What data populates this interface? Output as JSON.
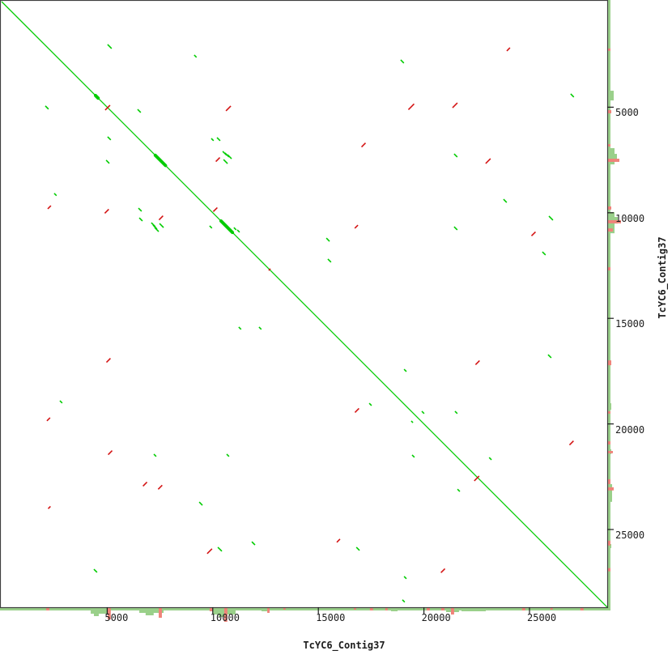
{
  "axes": {
    "x_title": "TcYC6_Contig37",
    "y_title": "TcYC6_Contig37",
    "x_ticks": [
      5000,
      10000,
      15000,
      20000,
      25000
    ],
    "y_ticks": [
      5000,
      10000,
      15000,
      20000,
      25000
    ]
  },
  "colors": {
    "forward_match": "#00cc00",
    "reverse_match": "#d41414",
    "hist_green": "#9ad08a",
    "hist_red": "#f0837a",
    "frame": "#3f3f3f",
    "text": "#1c1c1c",
    "background": "#ffffff"
  },
  "chart_data": {
    "type": "scatter",
    "subtype": "dotplot-self-alignment",
    "title": "",
    "xlabel": "TcYC6_Contig37",
    "ylabel": "TcYC6_Contig37",
    "x_range": [
      0,
      28680
    ],
    "y_range": [
      0,
      28680
    ],
    "sequence_length_bp": 28680,
    "main_diagonal": {
      "from_bp": 0,
      "to_bp": 28680
    },
    "bold_diagonal_regions_bp": [
      [
        4450,
        4570
      ],
      [
        7280,
        7760
      ],
      [
        10390,
        10930
      ]
    ],
    "forward_matches": [
      {
        "x": 5020,
        "y": 2030,
        "len": 190
      },
      {
        "x": 9120,
        "y": 2530,
        "len": 110
      },
      {
        "x": 18900,
        "y": 2760,
        "len": 150
      },
      {
        "x": 24000,
        "y": 2260,
        "len": 0
      },
      {
        "x": 2070,
        "y": 4940,
        "len": 150
      },
      {
        "x": 26950,
        "y": 4370,
        "len": 150
      },
      {
        "x": 6440,
        "y": 5100,
        "len": 150
      },
      {
        "x": 5020,
        "y": 6400,
        "len": 150
      },
      {
        "x": 9930,
        "y": 6480,
        "len": 110
      },
      {
        "x": 10200,
        "y": 6440,
        "len": 150
      },
      {
        "x": 21430,
        "y": 7210,
        "len": 150
      },
      {
        "x": 4950,
        "y": 7510,
        "len": 150
      },
      {
        "x": 10470,
        "y": 7090,
        "len": 190
      },
      {
        "x": 10580,
        "y": 7170,
        "len": 190
      },
      {
        "x": 10700,
        "y": 7250,
        "len": 190
      },
      {
        "x": 10510,
        "y": 7480,
        "len": 190
      },
      {
        "x": 2490,
        "y": 9080,
        "len": 110
      },
      {
        "x": 23770,
        "y": 9360,
        "len": 150
      },
      {
        "x": 6480,
        "y": 9780,
        "len": 150
      },
      {
        "x": 6520,
        "y": 10240,
        "len": 150
      },
      {
        "x": 7090,
        "y": 10470,
        "len": 190
      },
      {
        "x": 7170,
        "y": 10580,
        "len": 190
      },
      {
        "x": 7250,
        "y": 10700,
        "len": 190
      },
      {
        "x": 7480,
        "y": 10510,
        "len": 190
      },
      {
        "x": 9850,
        "y": 10620,
        "len": 110
      },
      {
        "x": 11000,
        "y": 10700,
        "len": 110
      },
      {
        "x": 11160,
        "y": 10810,
        "len": 110
      },
      {
        "x": 25920,
        "y": 10160,
        "len": 190
      },
      {
        "x": 21430,
        "y": 10660,
        "len": 150
      },
      {
        "x": 15380,
        "y": 11200,
        "len": 150
      },
      {
        "x": 25610,
        "y": 11850,
        "len": 150
      },
      {
        "x": 15450,
        "y": 12190,
        "len": 150
      },
      {
        "x": 11230,
        "y": 15410,
        "len": 110
      },
      {
        "x": 12190,
        "y": 15410,
        "len": 110
      },
      {
        "x": 25880,
        "y": 16720,
        "len": 150
      },
      {
        "x": 19060,
        "y": 17410,
        "len": 110
      },
      {
        "x": 2760,
        "y": 18900,
        "len": 110
      },
      {
        "x": 17410,
        "y": 19020,
        "len": 110
      },
      {
        "x": 19900,
        "y": 19400,
        "len": 110
      },
      {
        "x": 21470,
        "y": 19400,
        "len": 110
      },
      {
        "x": 19400,
        "y": 19860,
        "len": 80
      },
      {
        "x": 19440,
        "y": 21470,
        "len": 110
      },
      {
        "x": 23090,
        "y": 21590,
        "len": 110
      },
      {
        "x": 7210,
        "y": 21430,
        "len": 110
      },
      {
        "x": 10660,
        "y": 21430,
        "len": 110
      },
      {
        "x": 21590,
        "y": 23090,
        "len": 110
      },
      {
        "x": 9360,
        "y": 23700,
        "len": 150
      },
      {
        "x": 11850,
        "y": 25580,
        "len": 150
      },
      {
        "x": 10240,
        "y": 25840,
        "len": 190
      },
      {
        "x": 16800,
        "y": 25840,
        "len": 150
      },
      {
        "x": 4370,
        "y": 26880,
        "len": 150
      },
      {
        "x": 19060,
        "y": 27220,
        "len": 110
      },
      {
        "x": 18980,
        "y": 28330,
        "len": 110
      }
    ],
    "reverse_matches": [
      {
        "cx": 5020,
        "cy": 5020,
        "len": 230
      },
      {
        "cx": 10740,
        "cy": 5060,
        "len": 230
      },
      {
        "cx": 24000,
        "cy": 2260,
        "len": 150
      },
      {
        "cx": 19400,
        "cy": 4980,
        "len": 270
      },
      {
        "cx": 21470,
        "cy": 4910,
        "len": 230
      },
      {
        "cx": 17140,
        "cy": 6790,
        "len": 190
      },
      {
        "cx": 23040,
        "cy": 7550,
        "len": 230
      },
      {
        "cx": 10240,
        "cy": 7480,
        "len": 190
      },
      {
        "cx": 2260,
        "cy": 9740,
        "len": 150
      },
      {
        "cx": 4980,
        "cy": 9930,
        "len": 190
      },
      {
        "cx": 10120,
        "cy": 9850,
        "len": 190
      },
      {
        "cx": 7550,
        "cy": 10240,
        "len": 190
      },
      {
        "cx": 16800,
        "cy": 10660,
        "len": 150
      },
      {
        "cx": 25190,
        "cy": 11000,
        "len": 190
      },
      {
        "cx": 12690,
        "cy": 12690,
        "len": 80
      },
      {
        "cx": 5060,
        "cy": 16990,
        "len": 190
      },
      {
        "cx": 22540,
        "cy": 17100,
        "len": 190
      },
      {
        "cx": 2220,
        "cy": 19780,
        "len": 150
      },
      {
        "cx": 16830,
        "cy": 19360,
        "len": 190
      },
      {
        "cx": 26990,
        "cy": 20900,
        "len": 190
      },
      {
        "cx": 5140,
        "cy": 21360,
        "len": 190
      },
      {
        "cx": 6790,
        "cy": 22850,
        "len": 190
      },
      {
        "cx": 7510,
        "cy": 23000,
        "len": 190
      },
      {
        "cx": 2260,
        "cy": 23960,
        "len": 110
      },
      {
        "cx": 22500,
        "cy": 22580,
        "len": 230
      },
      {
        "cx": 15950,
        "cy": 25530,
        "len": 150
      },
      {
        "cx": 9850,
        "cy": 26030,
        "len": 230
      },
      {
        "cx": 20900,
        "cy": 26950,
        "len": 190
      }
    ],
    "bottom_coverage_bars": [
      {
        "pos": 2110,
        "span": 150,
        "depth": 3,
        "color": "red"
      },
      {
        "pos": 2800,
        "span": 110,
        "depth": 2,
        "color": "green"
      },
      {
        "pos": 4220,
        "span": 920,
        "depth": 7,
        "color": "green"
      },
      {
        "pos": 4370,
        "span": 230,
        "depth": 10,
        "color": "green"
      },
      {
        "pos": 5020,
        "span": 150,
        "depth": 14,
        "color": "red"
      },
      {
        "pos": 5670,
        "span": 150,
        "depth": 2,
        "color": "green"
      },
      {
        "pos": 6520,
        "span": 1150,
        "depth": 6,
        "color": "green"
      },
      {
        "pos": 6820,
        "span": 380,
        "depth": 9,
        "color": "green"
      },
      {
        "pos": 7440,
        "span": 150,
        "depth": 12,
        "color": "red"
      },
      {
        "pos": 9850,
        "span": 150,
        "depth": 4,
        "color": "red"
      },
      {
        "pos": 10010,
        "span": 1070,
        "depth": 8,
        "color": "green"
      },
      {
        "pos": 10280,
        "span": 380,
        "depth": 11,
        "color": "green"
      },
      {
        "pos": 10540,
        "span": 150,
        "depth": 17,
        "color": "red"
      },
      {
        "pos": 11310,
        "span": 230,
        "depth": 3,
        "color": "green"
      },
      {
        "pos": 12310,
        "span": 380,
        "depth": 4,
        "color": "green"
      },
      {
        "pos": 12580,
        "span": 110,
        "depth": 6,
        "color": "red"
      },
      {
        "pos": 13340,
        "span": 110,
        "depth": 2,
        "color": "red"
      },
      {
        "pos": 13920,
        "span": 110,
        "depth": 2,
        "color": "green"
      },
      {
        "pos": 16680,
        "span": 110,
        "depth": 2,
        "color": "red"
      },
      {
        "pos": 17440,
        "span": 150,
        "depth": 3,
        "color": "red"
      },
      {
        "pos": 18170,
        "span": 110,
        "depth": 3,
        "color": "red"
      },
      {
        "pos": 18440,
        "span": 310,
        "depth": 4,
        "color": "green"
      },
      {
        "pos": 20130,
        "span": 150,
        "depth": 3,
        "color": "red"
      },
      {
        "pos": 20820,
        "span": 150,
        "depth": 3,
        "color": "red"
      },
      {
        "pos": 21050,
        "span": 610,
        "depth": 5,
        "color": "green"
      },
      {
        "pos": 21280,
        "span": 150,
        "depth": 8,
        "color": "red"
      },
      {
        "pos": 21780,
        "span": 1150,
        "depth": 4,
        "color": "green"
      },
      {
        "pos": 22930,
        "span": 770,
        "depth": 2,
        "color": "green"
      },
      {
        "pos": 24650,
        "span": 150,
        "depth": 3,
        "color": "red"
      },
      {
        "pos": 25990,
        "span": 110,
        "depth": 2,
        "color": "red"
      },
      {
        "pos": 26870,
        "span": 110,
        "depth": 2,
        "color": "green"
      },
      {
        "pos": 27410,
        "span": 150,
        "depth": 3,
        "color": "red"
      }
    ],
    "right_coverage_bars": [
      {
        "pos": 2030,
        "span": 150,
        "depth": 2,
        "color": "green"
      },
      {
        "pos": 2220,
        "span": 110,
        "depth": 3,
        "color": "red"
      },
      {
        "pos": 2610,
        "span": 150,
        "depth": 2,
        "color": "green"
      },
      {
        "pos": 4220,
        "span": 460,
        "depth": 7,
        "color": "green"
      },
      {
        "pos": 5140,
        "span": 150,
        "depth": 4,
        "color": "red"
      },
      {
        "pos": 6360,
        "span": 190,
        "depth": 3,
        "color": "green"
      },
      {
        "pos": 6750,
        "span": 110,
        "depth": 3,
        "color": "red"
      },
      {
        "pos": 6940,
        "span": 770,
        "depth": 8,
        "color": "green"
      },
      {
        "pos": 7210,
        "span": 310,
        "depth": 11,
        "color": "green"
      },
      {
        "pos": 7440,
        "span": 150,
        "depth": 14,
        "color": "red"
      },
      {
        "pos": 7780,
        "span": 150,
        "depth": 3,
        "color": "green"
      },
      {
        "pos": 9700,
        "span": 150,
        "depth": 4,
        "color": "red"
      },
      {
        "pos": 9970,
        "span": 1000,
        "depth": 8,
        "color": "green"
      },
      {
        "pos": 10200,
        "span": 310,
        "depth": 12,
        "color": "green"
      },
      {
        "pos": 10350,
        "span": 150,
        "depth": 16,
        "color": "red"
      },
      {
        "pos": 10740,
        "span": 150,
        "depth": 6,
        "color": "red"
      },
      {
        "pos": 11270,
        "span": 190,
        "depth": 3,
        "color": "green"
      },
      {
        "pos": 12580,
        "span": 150,
        "depth": 3,
        "color": "red"
      },
      {
        "pos": 12960,
        "span": 150,
        "depth": 2,
        "color": "green"
      },
      {
        "pos": 14110,
        "span": 150,
        "depth": 2,
        "color": "green"
      },
      {
        "pos": 16990,
        "span": 230,
        "depth": 4,
        "color": "red"
      },
      {
        "pos": 19020,
        "span": 310,
        "depth": 4,
        "color": "green"
      },
      {
        "pos": 19400,
        "span": 110,
        "depth": 3,
        "color": "red"
      },
      {
        "pos": 20820,
        "span": 150,
        "depth": 3,
        "color": "red"
      },
      {
        "pos": 21200,
        "span": 230,
        "depth": 4,
        "color": "green"
      },
      {
        "pos": 21280,
        "span": 110,
        "depth": 6,
        "color": "red"
      },
      {
        "pos": 22620,
        "span": 230,
        "depth": 3,
        "color": "red"
      },
      {
        "pos": 22850,
        "span": 840,
        "depth": 5,
        "color": "green"
      },
      {
        "pos": 23000,
        "span": 150,
        "depth": 7,
        "color": "red"
      },
      {
        "pos": 25530,
        "span": 230,
        "depth": 3,
        "color": "red"
      },
      {
        "pos": 25690,
        "span": 190,
        "depth": 4,
        "color": "green"
      },
      {
        "pos": 26830,
        "span": 150,
        "depth": 3,
        "color": "red"
      },
      {
        "pos": 27140,
        "span": 110,
        "depth": 2,
        "color": "green"
      }
    ]
  }
}
